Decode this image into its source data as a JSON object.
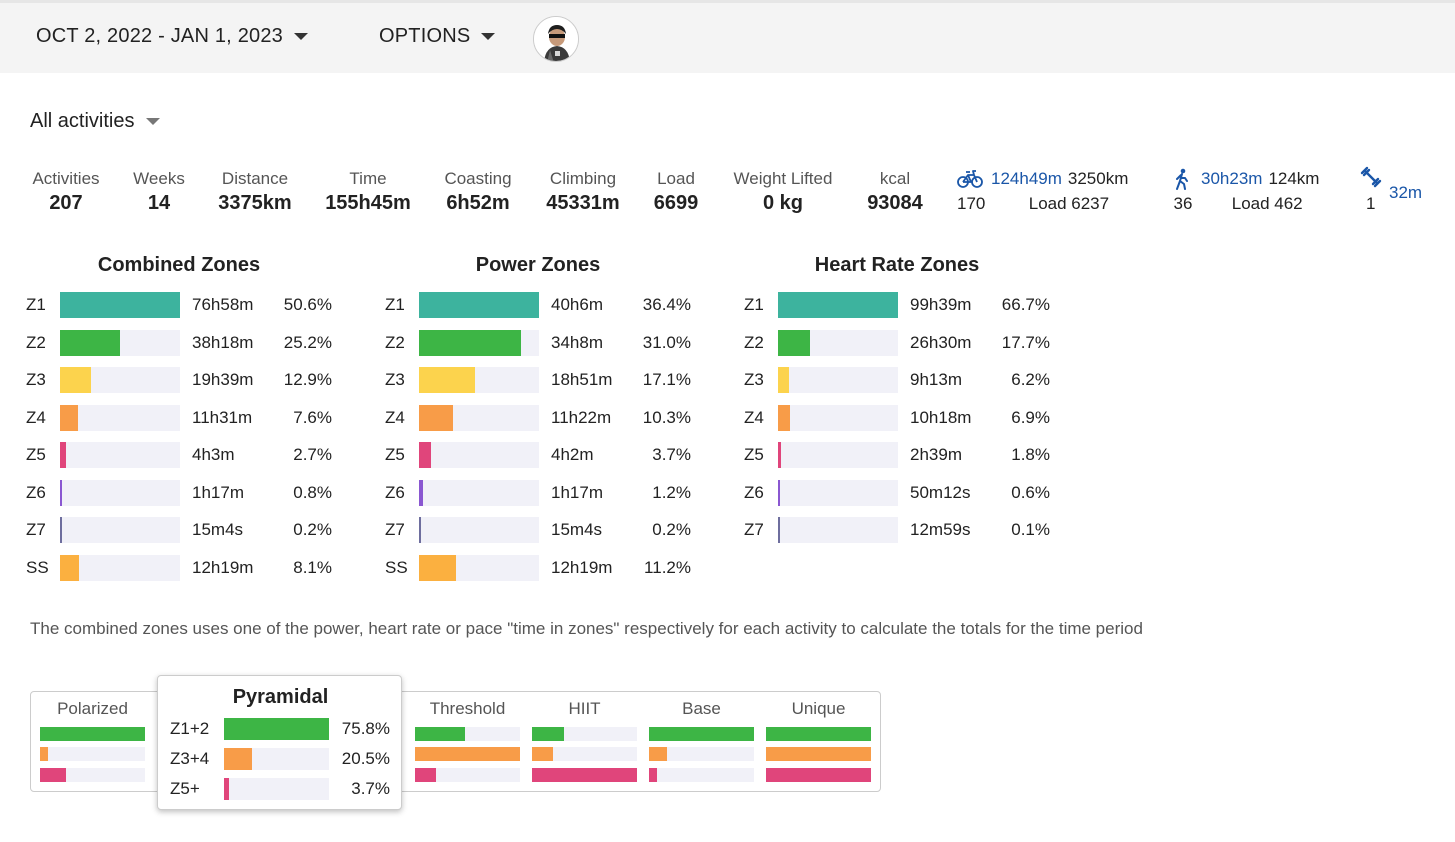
{
  "header": {
    "date_range": "OCT 2, 2022 - JAN 1, 2023",
    "options_label": "OPTIONS"
  },
  "filter": {
    "label": "All activities"
  },
  "stats": [
    {
      "label": "Activities",
      "value": "207"
    },
    {
      "label": "Weeks",
      "value": "14"
    },
    {
      "label": "Distance",
      "value": "3375km"
    },
    {
      "label": "Time",
      "value": "155h45m"
    },
    {
      "label": "Coasting",
      "value": "6h52m"
    },
    {
      "label": "Climbing",
      "value": "45331m"
    },
    {
      "label": "Load",
      "value": "6699"
    },
    {
      "label": "Weight Lifted",
      "value": "0 kg"
    },
    {
      "label": "kcal",
      "value": "93084"
    }
  ],
  "sports": {
    "ride": {
      "icon": "bike-icon",
      "time": "124h49m",
      "distance": "3250km",
      "count": "170",
      "load": "Load 6237"
    },
    "walk": {
      "icon": "walk-icon",
      "time": "30h23m",
      "distance": "124km",
      "count": "36",
      "load": "Load 462"
    },
    "weights": {
      "icon": "dumbbell-icon",
      "time": "32m",
      "count": "1"
    }
  },
  "colors": {
    "Z1": "#3db39e",
    "Z2": "#3db545",
    "Z3": "#fcd34d",
    "Z4": "#f89c48",
    "Z5": "#e0457b",
    "Z6": "#8a57d1",
    "Z7": "#6e6e9e",
    "SS": "#fbb040",
    "track": "#f1f1f8",
    "link": "#1a56a8"
  },
  "zones": {
    "combined": {
      "title": "Combined Zones",
      "rows": [
        {
          "zone": "Z1",
          "time": "76h58m",
          "pct": "50.6%",
          "fill": 1.0
        },
        {
          "zone": "Z2",
          "time": "38h18m",
          "pct": "25.2%",
          "fill": 0.498
        },
        {
          "zone": "Z3",
          "time": "19h39m",
          "pct": "12.9%",
          "fill": 0.255
        },
        {
          "zone": "Z4",
          "time": "11h31m",
          "pct": "7.6%",
          "fill": 0.15
        },
        {
          "zone": "Z5",
          "time": "4h3m",
          "pct": "2.7%",
          "fill": 0.053
        },
        {
          "zone": "Z6",
          "time": "1h17m",
          "pct": "0.8%",
          "fill": 0.017
        },
        {
          "zone": "Z7",
          "time": "15m4s",
          "pct": "0.2%",
          "fill": 0.008
        },
        {
          "zone": "SS",
          "time": "12h19m",
          "pct": "8.1%",
          "fill": 0.16
        }
      ]
    },
    "power": {
      "title": "Power Zones",
      "rows": [
        {
          "zone": "Z1",
          "time": "40h6m",
          "pct": "36.4%",
          "fill": 1.0
        },
        {
          "zone": "Z2",
          "time": "34h8m",
          "pct": "31.0%",
          "fill": 0.852
        },
        {
          "zone": "Z3",
          "time": "18h51m",
          "pct": "17.1%",
          "fill": 0.47
        },
        {
          "zone": "Z4",
          "time": "11h22m",
          "pct": "10.3%",
          "fill": 0.283
        },
        {
          "zone": "Z5",
          "time": "4h2m",
          "pct": "3.7%",
          "fill": 0.102
        },
        {
          "zone": "Z6",
          "time": "1h17m",
          "pct": "1.2%",
          "fill": 0.033
        },
        {
          "zone": "Z7",
          "time": "15m4s",
          "pct": "0.2%",
          "fill": 0.008
        },
        {
          "zone": "SS",
          "time": "12h19m",
          "pct": "11.2%",
          "fill": 0.308
        }
      ]
    },
    "heart_rate": {
      "title": "Heart Rate Zones",
      "rows": [
        {
          "zone": "Z1",
          "time": "99h39m",
          "pct": "66.7%",
          "fill": 1.0
        },
        {
          "zone": "Z2",
          "time": "26h30m",
          "pct": "17.7%",
          "fill": 0.265
        },
        {
          "zone": "Z3",
          "time": "9h13m",
          "pct": "6.2%",
          "fill": 0.093
        },
        {
          "zone": "Z4",
          "time": "10h18m",
          "pct": "6.9%",
          "fill": 0.103
        },
        {
          "zone": "Z5",
          "time": "2h39m",
          "pct": "1.8%",
          "fill": 0.027
        },
        {
          "zone": "Z6",
          "time": "50m12s",
          "pct": "0.6%",
          "fill": 0.009
        },
        {
          "zone": "Z7",
          "time": "12m59s",
          "pct": "0.1%",
          "fill": 0.008
        }
      ]
    }
  },
  "note": "The combined zones uses one of the power, heart rate or pace \"time in zones\" respectively for each activity to calculate the totals for the time period",
  "distributions": [
    {
      "name": "Polarized",
      "values": [
        1.0,
        0.08,
        0.25
      ]
    },
    {
      "name": "Threshold",
      "values": [
        0.48,
        1.0,
        0.2
      ]
    },
    {
      "name": "HIIT",
      "values": [
        0.3,
        0.2,
        1.0
      ]
    },
    {
      "name": "Base",
      "values": [
        1.0,
        0.17,
        0.08
      ]
    },
    {
      "name": "Unique",
      "values": [
        1.0,
        1.0,
        1.0
      ]
    }
  ],
  "popup": {
    "title": "Pyramidal",
    "rows": [
      {
        "label": "Z1+2",
        "pct": "75.8%",
        "fill": 1.0,
        "color": "Z2"
      },
      {
        "label": "Z3+4",
        "pct": "20.5%",
        "fill": 0.27,
        "color": "Z4"
      },
      {
        "label": "Z5+",
        "pct": "3.7%",
        "fill": 0.05,
        "color": "Z5"
      }
    ]
  }
}
